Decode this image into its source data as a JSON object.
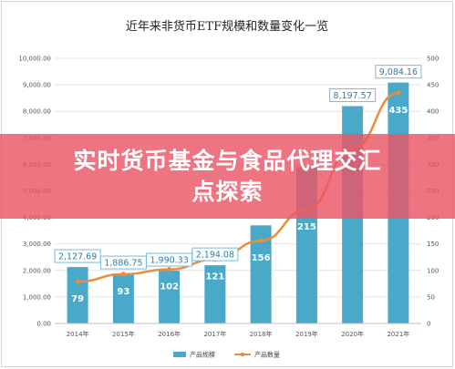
{
  "chart_data": {
    "type": "bar",
    "title": "近年来非货币ETF规模和数量变化一览",
    "categories": [
      "2014年",
      "2015年",
      "2016年",
      "2017年",
      "2018年",
      "2019年",
      "2020年",
      "2021年"
    ],
    "series": [
      {
        "name": "产品规模",
        "type": "bar",
        "axis": "left",
        "values": [
          2127.69,
          1886.75,
          1990.33,
          2194.08,
          3700,
          5900,
          8197.57,
          9084.16
        ],
        "labels": [
          "2,127.69",
          "1,886.75",
          "1,990.33",
          "2,194.08",
          "",
          "",
          "8,197.57",
          "9,084.16"
        ]
      },
      {
        "name": "产品数量",
        "type": "line",
        "axis": "right",
        "values": [
          79,
          93,
          102,
          121,
          156,
          215,
          330,
          435
        ],
        "labels": [
          "79",
          "93",
          "102",
          "121",
          "156",
          "215",
          "",
          "435"
        ]
      }
    ],
    "ylim_left": [
      0,
      10000
    ],
    "ylim_right": [
      0,
      500
    ],
    "left_ticks": [
      "0.00",
      "1,000.00",
      "2,000.00",
      "3,000.00",
      "4,000.00",
      "5,000.00",
      "6,000.00",
      "7,000.00",
      "8,000.00",
      "9,000.00",
      "10,000.00"
    ],
    "right_ticks": [
      "0",
      "50",
      "100",
      "150",
      "200",
      "250",
      "300",
      "350",
      "400",
      "450",
      "500"
    ],
    "grid": true,
    "legend_position": "bottom",
    "colors": {
      "bar": "#4aa8c9",
      "line": "#ed8c3a",
      "label_border": "#7bbad6",
      "label_text": "#2f7fa8"
    }
  },
  "banner": {
    "line1": "实时货币基金与食品代理交汇",
    "line2": "点探索"
  }
}
